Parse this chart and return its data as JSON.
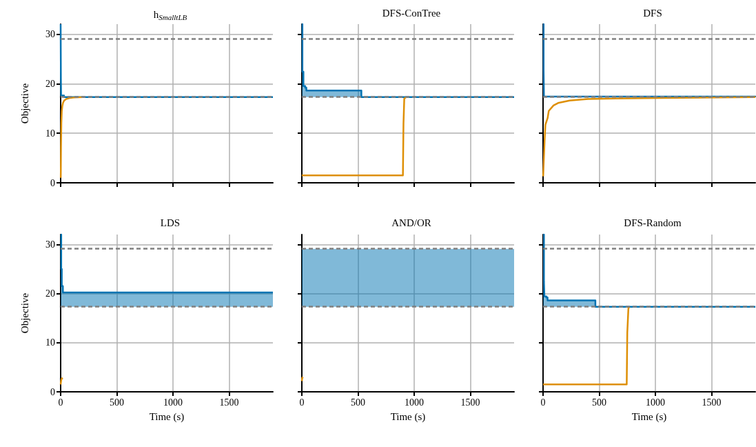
{
  "chart_data": [
    {
      "type": "line",
      "title": "h$_{SmalltLB}$",
      "ylabel": "Objective",
      "xlim": [
        0,
        1890
      ],
      "ylim": [
        0,
        32
      ],
      "xticks": [
        0,
        500,
        1000,
        1500
      ],
      "yticks": [
        0,
        10,
        20,
        30
      ],
      "grid": true,
      "tick_labels": "y",
      "marker": "none",
      "ref_lines": [
        {
          "axis": "y",
          "value": 29.1,
          "color": "#808080",
          "line_style": "dashed"
        },
        {
          "axis": "y",
          "value": 17.3,
          "color": "#808080",
          "line_style": "dashed"
        }
      ],
      "series": [
        {
          "type": "step",
          "color": "#0173b2",
          "x": [
            0,
            2,
            4,
            30,
            1890
          ],
          "values": [
            32,
            21,
            17.6,
            17.3,
            17.3
          ],
          "lower": [
            17.3,
            17.3,
            17.3,
            17.3,
            17.3
          ],
          "upper": [
            32,
            21,
            17.6,
            17.3,
            17.3
          ]
        },
        {
          "color": "#de8f05",
          "x": [
            1,
            3,
            6,
            10,
            15,
            22,
            32,
            50,
            80,
            120,
            200
          ],
          "values": [
            1,
            7,
            12,
            14.5,
            15.5,
            16.2,
            16.6,
            16.9,
            17.1,
            17.2,
            17.3
          ]
        }
      ]
    },
    {
      "type": "line",
      "title": "DFS-ConTree",
      "xlim": [
        0,
        1890
      ],
      "ylim": [
        0,
        32
      ],
      "xticks": [
        0,
        500,
        1000,
        1500
      ],
      "yticks": [
        0,
        10,
        20,
        30
      ],
      "grid": true,
      "tick_labels": false,
      "marker": "none",
      "ref_lines": [
        {
          "axis": "y",
          "value": 29.1,
          "color": "#808080",
          "line_style": "dashed"
        },
        {
          "axis": "y",
          "value": 17.3,
          "color": "#808080",
          "line_style": "dashed"
        }
      ],
      "series": [
        {
          "type": "step",
          "color": "#0173b2",
          "x": [
            0,
            5,
            14,
            30,
            40,
            530,
            1890
          ],
          "values": [
            32,
            22.4,
            19.5,
            19.2,
            18.6,
            17.3,
            17.3
          ],
          "lower": [
            17.3,
            17.3,
            17.3,
            17.3,
            17.3,
            17.3,
            17.3
          ],
          "upper": [
            32,
            22.4,
            19.5,
            19.2,
            18.6,
            17.3,
            17.3
          ]
        },
        {
          "color": "#de8f05",
          "x": [
            0,
            900,
            905,
            912,
            930
          ],
          "values": [
            1.5,
            1.5,
            12,
            17,
            17.3
          ]
        }
      ]
    },
    {
      "type": "line",
      "title": "DFS",
      "xlim": [
        0,
        1890
      ],
      "ylim": [
        0,
        32
      ],
      "xticks": [
        0,
        500,
        1000,
        1500
      ],
      "yticks": [
        0,
        10,
        20,
        30
      ],
      "grid": true,
      "tick_labels": false,
      "marker": "none",
      "ref_lines": [
        {
          "axis": "y",
          "value": 29.1,
          "color": "#808080",
          "line_style": "dashed"
        },
        {
          "axis": "y",
          "value": 17.3,
          "color": "#808080",
          "line_style": "dashed"
        }
      ],
      "series": [
        {
          "type": "step",
          "color": "#0173b2",
          "x": [
            0,
            5,
            8,
            1890
          ],
          "values": [
            32,
            22.8,
            17.4,
            17.3
          ]
        },
        {
          "color": "#de8f05",
          "x": [
            1,
            14,
            21,
            41,
            51,
            93,
            134,
            237,
            401,
            648,
            1059,
            1890
          ],
          "values": [
            1.3,
            8.7,
            11.7,
            13.1,
            14.5,
            15.6,
            16.1,
            16.6,
            16.9,
            17.0,
            17.1,
            17.3
          ]
        }
      ]
    },
    {
      "type": "line",
      "title": "LDS",
      "xlabel": "Time (s)",
      "ylabel": "Objective",
      "xlim": [
        0,
        1890
      ],
      "ylim": [
        0,
        32
      ],
      "xticks": [
        0,
        500,
        1000,
        1500
      ],
      "yticks": [
        0,
        10,
        20,
        30
      ],
      "grid": true,
      "marker": "none",
      "ref_lines": [
        {
          "axis": "y",
          "value": 29.1,
          "color": "#808080",
          "line_style": "dashed"
        },
        {
          "axis": "y",
          "value": 17.3,
          "color": "#808080",
          "line_style": "dashed"
        }
      ],
      "series": [
        {
          "type": "step",
          "color": "#0173b2",
          "x": [
            0,
            5,
            10,
            20,
            1890
          ],
          "values": [
            32,
            25,
            21.5,
            20.2,
            20.2
          ],
          "lower": [
            17.3,
            17.3,
            17.3,
            17.3,
            17.3
          ],
          "upper": [
            32,
            25,
            21.5,
            20.2,
            20.2
          ]
        },
        {
          "color": "#de8f05",
          "x": [
            0,
            5,
            10,
            20
          ],
          "values": [
            1.5,
            2.4,
            2.7,
            2.8
          ]
        }
      ]
    },
    {
      "type": "line",
      "title": "AND/OR",
      "xlabel": "Time (s)",
      "xlim": [
        0,
        1890
      ],
      "ylim": [
        0,
        32
      ],
      "xticks": [
        0,
        500,
        1000,
        1500
      ],
      "yticks": [
        0,
        10,
        20,
        30
      ],
      "grid": true,
      "tick_labels": "x",
      "marker": "none",
      "ref_lines": [
        {
          "axis": "y",
          "value": 29.1,
          "color": "#808080",
          "line_style": "dashed"
        },
        {
          "axis": "y",
          "value": 17.3,
          "color": "#808080",
          "line_style": "dashed"
        }
      ],
      "series": [
        {
          "type": "step",
          "color": "#0173b2",
          "x": [
            0,
            1890
          ],
          "values": [
            null,
            null
          ],
          "lower": [
            17.3,
            17.3
          ],
          "upper": [
            29.1,
            29.1
          ]
        },
        {
          "color": "#de8f05",
          "x": [
            0,
            3,
            10
          ],
          "values": [
            2.2,
            2.8,
            3.0
          ]
        }
      ]
    },
    {
      "type": "line",
      "title": "DFS-Random",
      "xlabel": "Time (s)",
      "xlim": [
        0,
        1890
      ],
      "ylim": [
        0,
        32
      ],
      "xticks": [
        0,
        500,
        1000,
        1500
      ],
      "yticks": [
        0,
        10,
        20,
        30
      ],
      "grid": true,
      "tick_labels": "x",
      "marker": "none",
      "ref_lines": [
        {
          "axis": "y",
          "value": 29.1,
          "color": "#808080",
          "line_style": "dashed"
        },
        {
          "axis": "y",
          "value": 17.3,
          "color": "#808080",
          "line_style": "dashed"
        }
      ],
      "series": [
        {
          "type": "step",
          "color": "#0173b2",
          "x": [
            0,
            8,
            12,
            30,
            40,
            466,
            1890
          ],
          "values": [
            32,
            22.4,
            19.4,
            19.2,
            18.6,
            17.3,
            17.3
          ],
          "lower": [
            17.3,
            17.3,
            17.3,
            17.3,
            17.3,
            17.3,
            17.3
          ],
          "upper": [
            32,
            22.4,
            19.4,
            19.2,
            18.6,
            17.3,
            17.3
          ]
        },
        {
          "color": "#de8f05",
          "x": [
            0,
            745,
            750,
            760,
            770
          ],
          "values": [
            1.5,
            1.5,
            12,
            17,
            17.3
          ]
        }
      ]
    }
  ]
}
